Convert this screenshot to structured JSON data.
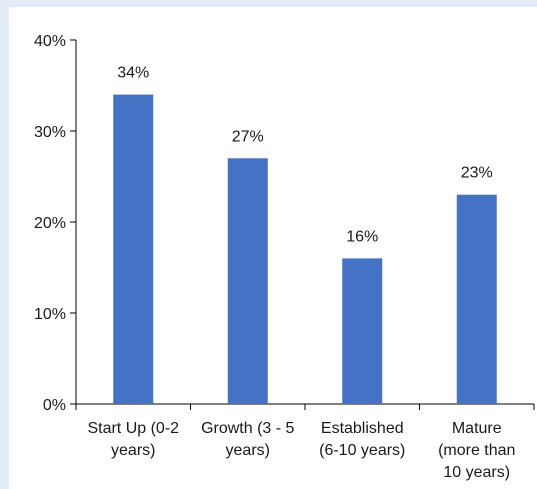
{
  "chart_data": {
    "type": "bar",
    "categories": [
      [
        "Start Up (0-2",
        "years)"
      ],
      [
        "Growth (3 - 5",
        "years)"
      ],
      [
        "Established",
        "(6-10 years)"
      ],
      [
        "Mature",
        "(more than",
        "10 years)"
      ]
    ],
    "values": [
      34,
      27,
      16,
      23
    ],
    "data_labels": [
      "34%",
      "27%",
      "16%",
      "23%"
    ],
    "yticks": [
      0,
      10,
      20,
      30,
      40
    ],
    "ytick_labels": [
      "0%",
      "10%",
      "20%",
      "30%",
      "40%"
    ],
    "ylim": [
      0,
      40
    ],
    "grid": false,
    "legend": "none",
    "colors": {
      "bar": "#4472c4",
      "axis": "#000000",
      "text": "#1a1a1a",
      "background": "#e3ecf8",
      "plot_background": "#ffffff"
    }
  }
}
